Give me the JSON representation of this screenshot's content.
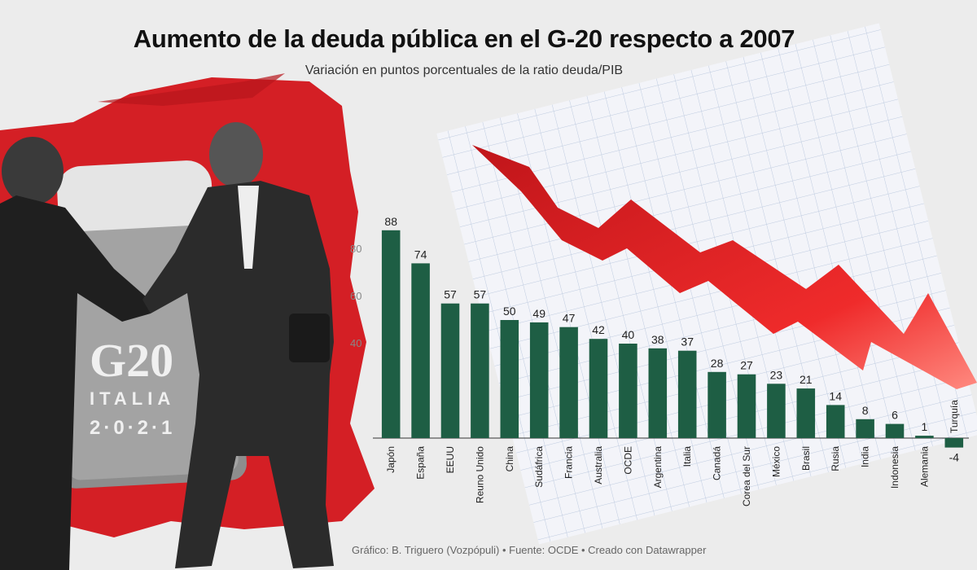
{
  "title": "Aumento de la deuda pública en el G-20 respecto a 2007",
  "subtitle": "Variación en puntos porcentuales de la ratio deuda/PIB",
  "footer": "Gráfico: B. Triguero (Vozpópuli) • Fuente: OCDE • Creado con Datawrapper",
  "photo": {
    "sign_lines": [
      "G20",
      "ITALIA",
      "2·0·2·1"
    ]
  },
  "colors": {
    "bar": "#1e5e44",
    "arrow": "#e02020",
    "splash": "#d41f25",
    "background": "#ececec"
  },
  "chart_data": {
    "type": "bar",
    "title": "Aumento de la deuda pública en el G-20 respecto a 2007",
    "subtitle": "Variación en puntos porcentuales de la ratio deuda/PIB",
    "categories": [
      "Japón",
      "España",
      "EEUU",
      "Reuno Unido",
      "China",
      "Sudáfrica",
      "Francia",
      "Australia",
      "OCDE",
      "Argentina",
      "Italia",
      "Canadá",
      "Corea del Sur",
      "México",
      "Brasil",
      "Rusia",
      "India",
      "Indonesia",
      "Alemania",
      "Turquía"
    ],
    "values": [
      88,
      74,
      57,
      57,
      50,
      49,
      47,
      42,
      40,
      38,
      37,
      28,
      27,
      23,
      21,
      14,
      8,
      6,
      1,
      -4
    ],
    "labels": [
      "88",
      "74",
      "57",
      "57",
      "50",
      "49",
      "47",
      "42",
      "40",
      "38",
      "37",
      "28",
      "27",
      "23",
      "21",
      "14",
      "8",
      "6",
      "1",
      "-4"
    ],
    "yticks": [
      "80",
      "60",
      "40"
    ],
    "ylim": [
      -4,
      90
    ],
    "grid": false,
    "xlabel": "",
    "ylabel": ""
  }
}
